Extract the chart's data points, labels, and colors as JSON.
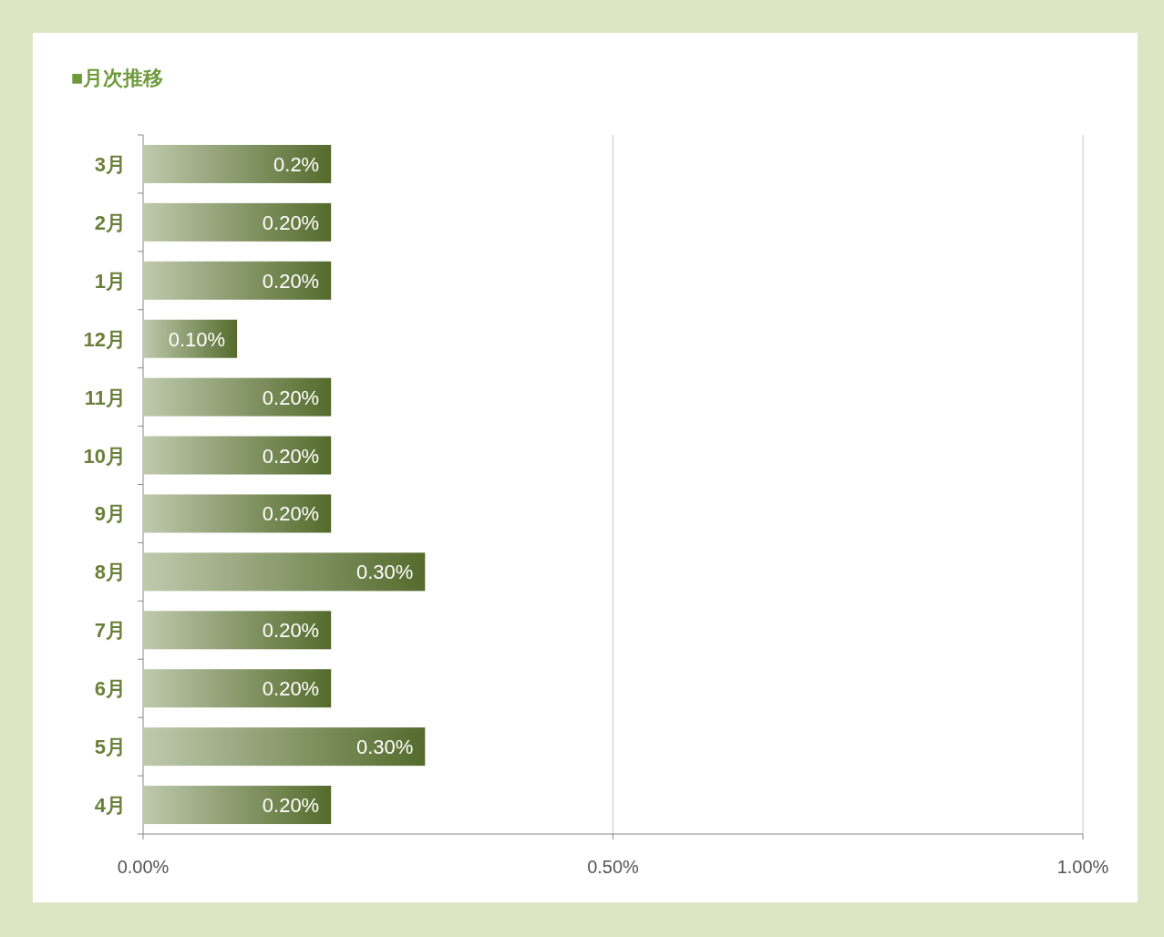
{
  "chart_data": {
    "type": "bar",
    "orientation": "horizontal",
    "title": "■月次推移",
    "categories": [
      "3月",
      "2月",
      "1月",
      "12月",
      "11月",
      "10月",
      "9月",
      "8月",
      "7月",
      "6月",
      "5月",
      "4月"
    ],
    "values": [
      0.2,
      0.2,
      0.2,
      0.1,
      0.2,
      0.2,
      0.2,
      0.3,
      0.2,
      0.2,
      0.3,
      0.2
    ],
    "value_labels": [
      "0.2%",
      "0.20%",
      "0.20%",
      "0.10%",
      "0.20%",
      "0.20%",
      "0.20%",
      "0.30%",
      "0.20%",
      "0.20%",
      "0.30%",
      "0.20%"
    ],
    "color": "#5f7a32",
    "xlim": [
      0,
      1
    ],
    "xticks": [
      {
        "value": 0,
        "label": "0.00%"
      },
      {
        "value": 0.5,
        "label": "0.50%"
      },
      {
        "value": 1,
        "label": "1.00%"
      }
    ],
    "grid": "x"
  }
}
